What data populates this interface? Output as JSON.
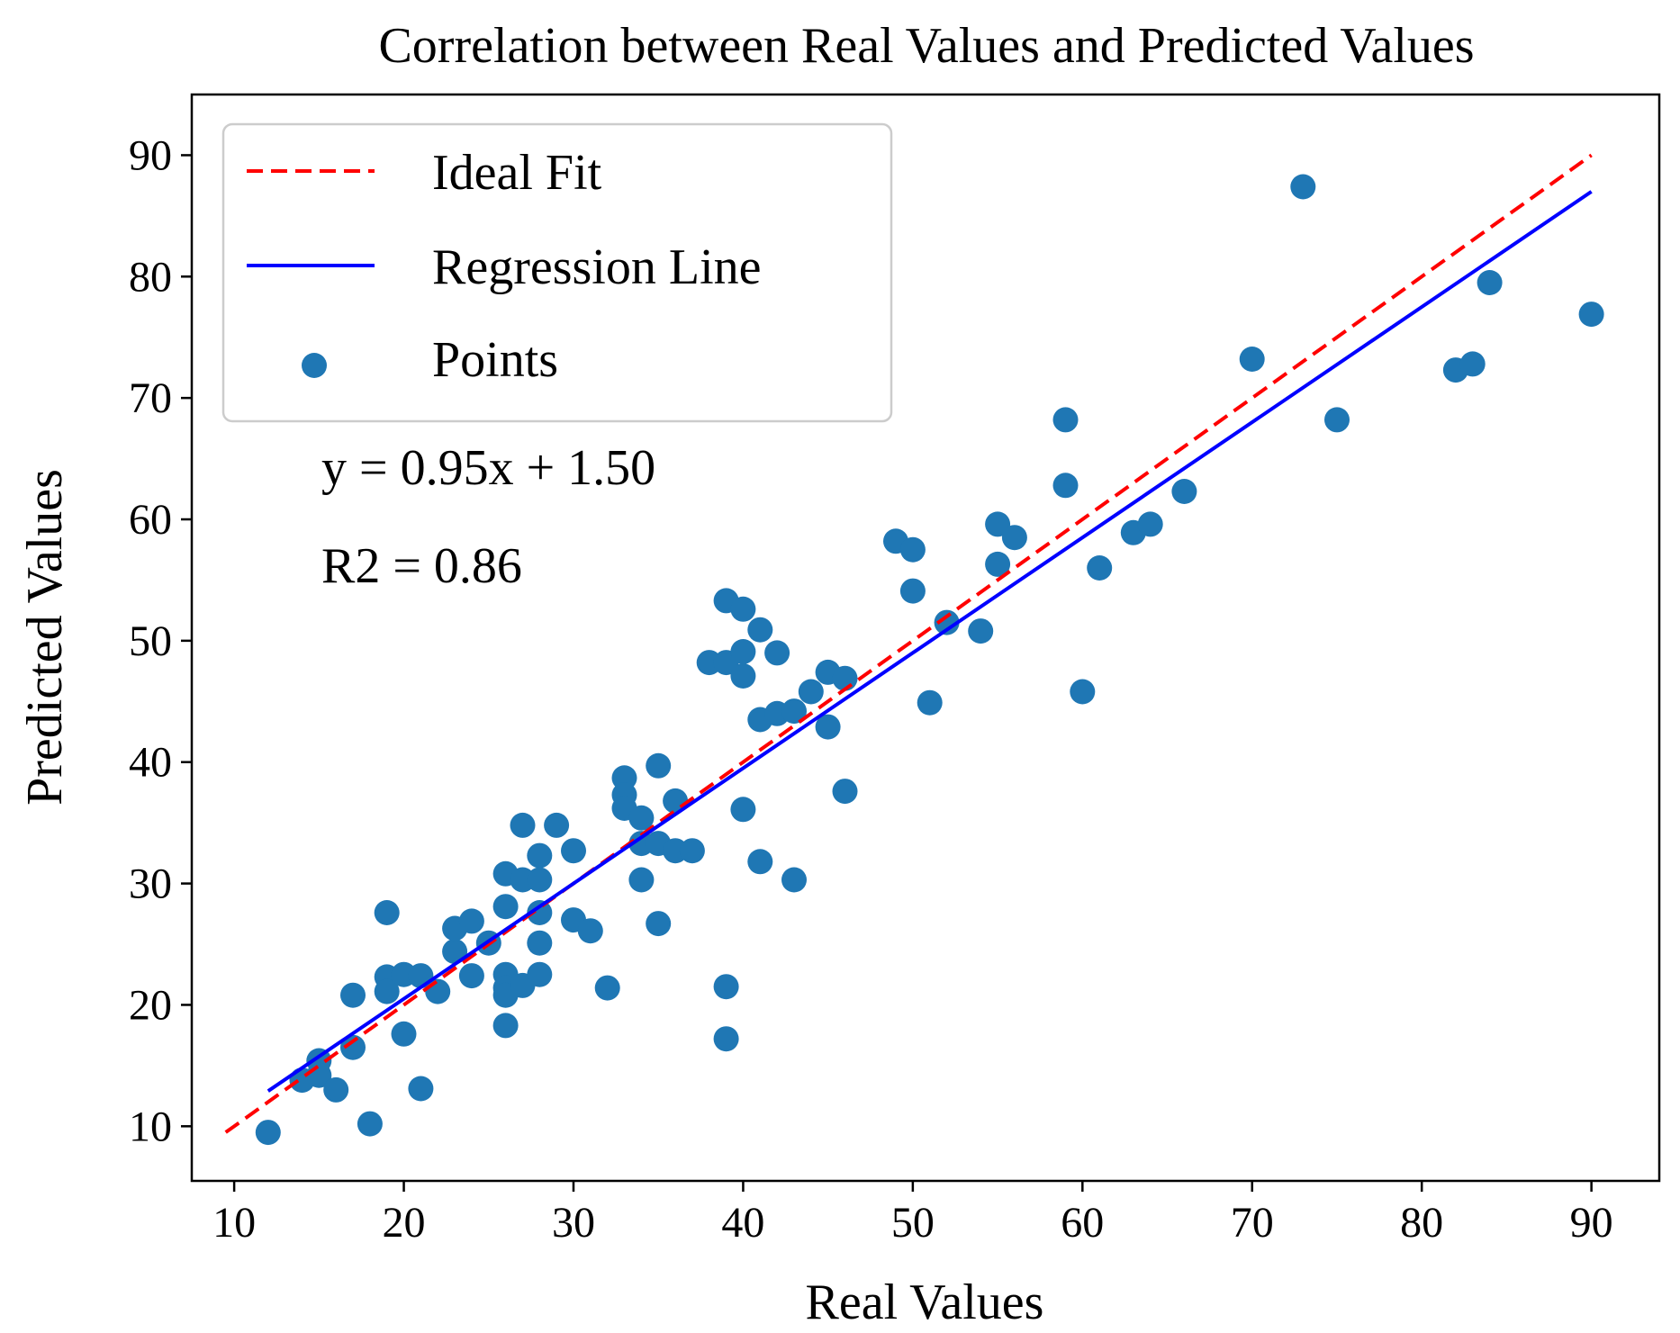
{
  "chart_data": {
    "type": "scatter",
    "title": "Correlation between Real Values and Predicted Values",
    "xlabel": "Real Values",
    "ylabel": "Predicted Values",
    "xlim": [
      7.5,
      94
    ],
    "ylim": [
      5.5,
      95
    ],
    "xticks": [
      10,
      20,
      30,
      40,
      50,
      60,
      70,
      80,
      90
    ],
    "yticks": [
      10,
      20,
      30,
      40,
      50,
      60,
      70,
      80,
      90
    ],
    "grid": false,
    "legend_position": "upper-left",
    "legend": [
      {
        "label": "Ideal Fit",
        "style": "dashed-line",
        "color": "#ff0000"
      },
      {
        "label": "Regression Line",
        "style": "solid-line",
        "color": "#0000ff"
      },
      {
        "label": "Points",
        "style": "marker",
        "color": "#1f77b4"
      }
    ],
    "ideal_fit": {
      "x": [
        9.5,
        90
      ],
      "y": [
        9.5,
        90
      ],
      "color": "#ff0000"
    },
    "regression": {
      "slope": 0.95,
      "intercept": 1.5,
      "x": [
        12,
        90
      ],
      "color": "#0000ff"
    },
    "annotations": {
      "equation": "y = 0.95x + 1.50",
      "r2": "R2 = 0.86"
    },
    "series": [
      {
        "name": "Points",
        "color": "#1f77b4",
        "points": [
          [
            12,
            9.5
          ],
          [
            14,
            13.8
          ],
          [
            15,
            15.4
          ],
          [
            15,
            14.2
          ],
          [
            16,
            13
          ],
          [
            17,
            16.5
          ],
          [
            17,
            20.8
          ],
          [
            18,
            10.2
          ],
          [
            19,
            27.6
          ],
          [
            19,
            22.3
          ],
          [
            19,
            21.1
          ],
          [
            20,
            22.5
          ],
          [
            20,
            17.6
          ],
          [
            21,
            22.4
          ],
          [
            21,
            13.1
          ],
          [
            22,
            21.1
          ],
          [
            23,
            24.4
          ],
          [
            23,
            26.3
          ],
          [
            24,
            26.9
          ],
          [
            24,
            22.4
          ],
          [
            25,
            25.1
          ],
          [
            26,
            30.8
          ],
          [
            26,
            28.1
          ],
          [
            26,
            22.5
          ],
          [
            26,
            21.4
          ],
          [
            26,
            20.8
          ],
          [
            26,
            18.3
          ],
          [
            27,
            34.8
          ],
          [
            27,
            30.3
          ],
          [
            27,
            21.6
          ],
          [
            28,
            32.3
          ],
          [
            28,
            30.3
          ],
          [
            28,
            27.6
          ],
          [
            28,
            25.1
          ],
          [
            28,
            22.5
          ],
          [
            29,
            34.8
          ],
          [
            30,
            32.7
          ],
          [
            30,
            27
          ],
          [
            31,
            26.1
          ],
          [
            32,
            21.4
          ],
          [
            33,
            38.7
          ],
          [
            33,
            37.3
          ],
          [
            33,
            36.2
          ],
          [
            34,
            35.4
          ],
          [
            34,
            33.3
          ],
          [
            34,
            30.3
          ],
          [
            35,
            39.7
          ],
          [
            35,
            33.3
          ],
          [
            35,
            26.7
          ],
          [
            36,
            36.8
          ],
          [
            36,
            32.7
          ],
          [
            37,
            32.7
          ],
          [
            38,
            48.2
          ],
          [
            39,
            53.3
          ],
          [
            39,
            48.2
          ],
          [
            39,
            21.5
          ],
          [
            39,
            17.2
          ],
          [
            40,
            52.6
          ],
          [
            40,
            49.1
          ],
          [
            40,
            47.1
          ],
          [
            40,
            36.1
          ],
          [
            41,
            50.9
          ],
          [
            41,
            43.5
          ],
          [
            41,
            31.8
          ],
          [
            42,
            49
          ],
          [
            42,
            44
          ],
          [
            43,
            44.2
          ],
          [
            43,
            30.3
          ],
          [
            44,
            45.8
          ],
          [
            45,
            47.4
          ],
          [
            45,
            42.9
          ],
          [
            46,
            46.9
          ],
          [
            46,
            37.6
          ],
          [
            49,
            58.2
          ],
          [
            50,
            57.5
          ],
          [
            50,
            54.1
          ],
          [
            51,
            44.9
          ],
          [
            52,
            51.5
          ],
          [
            54,
            50.8
          ],
          [
            55,
            59.6
          ],
          [
            55,
            56.3
          ],
          [
            56,
            58.5
          ],
          [
            59,
            68.2
          ],
          [
            59,
            62.8
          ],
          [
            60,
            45.8
          ],
          [
            61,
            56
          ],
          [
            63,
            58.9
          ],
          [
            64,
            59.6
          ],
          [
            66,
            62.3
          ],
          [
            70,
            73.2
          ],
          [
            73,
            87.4
          ],
          [
            75,
            68.2
          ],
          [
            82,
            72.3
          ],
          [
            83,
            72.8
          ],
          [
            84,
            79.5
          ],
          [
            90,
            76.9
          ]
        ]
      }
    ]
  }
}
